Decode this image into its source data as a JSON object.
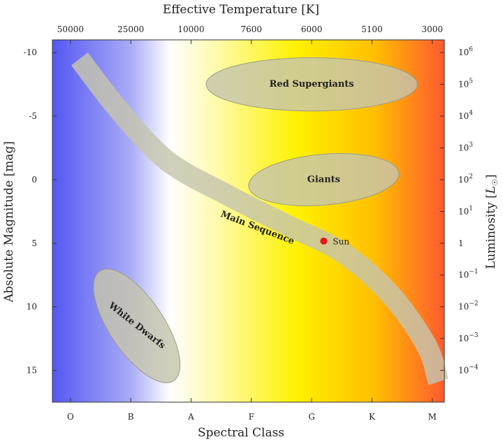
{
  "chart_data": {
    "type": "scatter",
    "title": "",
    "xlabel": "Spectral Class",
    "top_xlabel": "Effective Temperature [K]",
    "ylabel": "Absolute Magnitude [mag]",
    "right_ylabel": "Luminosity [L☉]",
    "spectral_classes": [
      "O",
      "B",
      "A",
      "F",
      "G",
      "K",
      "M"
    ],
    "temperature_ticks": [
      {
        "label": "50000",
        "class_pos": 0
      },
      {
        "label": "25000",
        "class_pos": 1
      },
      {
        "label": "10000",
        "class_pos": 2
      },
      {
        "label": "7600",
        "class_pos": 3
      },
      {
        "label": "6000",
        "class_pos": 4
      },
      {
        "label": "5100",
        "class_pos": 5
      },
      {
        "label": "3000",
        "class_pos": 6
      }
    ],
    "magnitude_ticks": [
      -10,
      -5,
      0,
      5,
      10,
      15
    ],
    "ylim": [
      17.5,
      -11
    ],
    "xlim": [
      -0.3,
      6.2
    ],
    "luminosity_ticks": [
      {
        "base": "10",
        "exp": "6",
        "mag": -10
      },
      {
        "base": "10",
        "exp": "5",
        "mag": -7.5
      },
      {
        "base": "10",
        "exp": "4",
        "mag": -5
      },
      {
        "base": "10",
        "exp": "3",
        "mag": -2.5
      },
      {
        "base": "10",
        "exp": "2",
        "mag": 0
      },
      {
        "base": "10",
        "exp": "1",
        "mag": 2.5
      },
      {
        "base": "1",
        "exp": "",
        "mag": 5
      },
      {
        "base": "10",
        "exp": "−1",
        "mag": 7.5
      },
      {
        "base": "10",
        "exp": "−2",
        "mag": 10
      },
      {
        "base": "10",
        "exp": "−3",
        "mag": 12.5
      },
      {
        "base": "10",
        "exp": "−4",
        "mag": 15
      }
    ],
    "regions": [
      {
        "name": "Red Supergiants",
        "center_class": 4.0,
        "center_mag": -7.5,
        "rx_class": 1.75,
        "ry_mag": 2.1,
        "angle": 0,
        "label_angle": 0
      },
      {
        "name": "Giants",
        "center_class": 4.2,
        "center_mag": 0,
        "rx_class": 1.25,
        "ry_mag": 2.0,
        "angle": -5,
        "label_angle": 0
      },
      {
        "name": "White Dwarfs",
        "center_class": 1.1,
        "center_mag": 11.5,
        "rx_class": 0.45,
        "ry_mag": 5.2,
        "angle": -34,
        "label_angle": 38
      }
    ],
    "main_sequence": {
      "label": "Main Sequence",
      "label_class": 3.1,
      "label_mag": 3.8,
      "label_angle": 21,
      "path": [
        {
          "class": 0.15,
          "mag": -9.5
        },
        {
          "class": 0.8,
          "mag": -5.5
        },
        {
          "class": 1.6,
          "mag": -1.5
        },
        {
          "class": 2.6,
          "mag": 1.2
        },
        {
          "class": 3.6,
          "mag": 3.6
        },
        {
          "class": 4.5,
          "mag": 5.7
        },
        {
          "class": 5.3,
          "mag": 9.0
        },
        {
          "class": 5.9,
          "mag": 13.0
        },
        {
          "class": 6.1,
          "mag": 15.9
        }
      ]
    },
    "points": [
      {
        "name": "Sun",
        "class": 4.2,
        "mag": 4.83,
        "color": "#e8151b"
      }
    ],
    "background_gradient": [
      "#5458f2",
      "#a9abf6",
      "#ffffff",
      "#fffaaa",
      "#fef200",
      "#ffbf00",
      "#ff5a2e"
    ],
    "region_color": "#c6c5ad",
    "grid": false
  }
}
